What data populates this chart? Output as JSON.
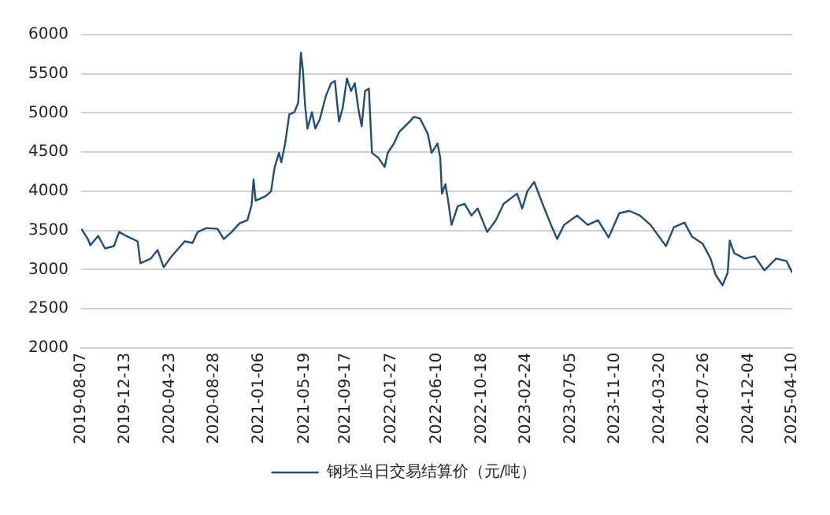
{
  "chart_data": {
    "type": "line",
    "x": [
      "2019-08-08",
      "2019-08-27",
      "2019-09-03",
      "2019-09-26",
      "2019-10-16",
      "2019-11-11",
      "2019-11-26",
      "2019-12-12",
      "2020-01-19",
      "2020-01-27",
      "2020-02-26",
      "2020-03-17",
      "2020-04-04",
      "2020-04-27",
      "2020-06-04",
      "2020-06-27",
      "2020-07-12",
      "2020-08-07",
      "2020-09-08",
      "2020-09-26",
      "2020-10-19",
      "2020-11-11",
      "2020-12-04",
      "2020-12-16",
      "2020-12-22",
      "2020-12-28",
      "2021-01-27",
      "2021-02-11",
      "2021-02-21",
      "2021-03-06",
      "2021-03-13",
      "2021-03-24",
      "2021-04-05",
      "2021-04-20",
      "2021-05-01",
      "2021-05-09",
      "2021-05-15",
      "2021-05-21",
      "2021-05-28",
      "2021-06-10",
      "2021-06-20",
      "2021-07-03",
      "2021-07-21",
      "2021-08-05",
      "2021-08-16",
      "2021-08-28",
      "2021-09-08",
      "2021-09-20",
      "2021-10-02",
      "2021-10-13",
      "2021-10-24",
      "2021-11-02",
      "2021-11-12",
      "2021-11-23",
      "2021-12-02",
      "2021-12-20",
      "2022-01-08",
      "2022-01-17",
      "2022-02-04",
      "2022-02-20",
      "2022-03-22",
      "2022-04-03",
      "2022-04-21",
      "2022-05-14",
      "2022-05-25",
      "2022-06-11",
      "2022-06-19",
      "2022-06-24",
      "2022-07-04",
      "2022-07-11",
      "2022-07-22",
      "2022-08-09",
      "2022-08-29",
      "2022-09-18",
      "2022-10-06",
      "2022-11-03",
      "2022-11-28",
      "2022-12-21",
      "2023-01-29",
      "2023-02-13",
      "2023-02-28",
      "2023-03-20",
      "2023-04-15",
      "2023-05-08",
      "2023-05-26",
      "2023-06-15",
      "2023-07-23",
      "2023-08-23",
      "2023-09-22",
      "2023-10-23",
      "2023-11-23",
      "2023-12-22",
      "2024-01-22",
      "2024-02-22",
      "2024-04-07",
      "2024-04-30",
      "2024-05-31",
      "2024-06-22",
      "2024-07-23",
      "2024-08-15",
      "2024-08-30",
      "2024-09-19",
      "2024-10-04",
      "2024-10-10",
      "2024-10-23",
      "2024-11-22",
      "2024-12-22",
      "2025-01-19",
      "2025-02-22",
      "2025-03-24",
      "2025-04-10"
    ],
    "series": [
      {
        "name": "钢坯当日交易结算价（元/吨）",
        "color": "#1f4e79",
        "values": [
          3520,
          3390,
          3310,
          3430,
          3270,
          3300,
          3480,
          3440,
          3360,
          3080,
          3140,
          3250,
          3030,
          3170,
          3360,
          3340,
          3480,
          3530,
          3520,
          3390,
          3480,
          3590,
          3630,
          3820,
          4150,
          3880,
          3940,
          4000,
          4300,
          4490,
          4370,
          4610,
          4980,
          5010,
          5130,
          5770,
          5530,
          5100,
          4800,
          5010,
          4800,
          4920,
          5220,
          5380,
          5410,
          4890,
          5070,
          5440,
          5280,
          5380,
          5040,
          4830,
          5280,
          5310,
          4490,
          4430,
          4310,
          4490,
          4610,
          4760,
          4890,
          4950,
          4930,
          4730,
          4490,
          4610,
          4430,
          3970,
          4090,
          3910,
          3570,
          3810,
          3840,
          3690,
          3780,
          3480,
          3630,
          3840,
          3970,
          3780,
          4000,
          4120,
          3820,
          3570,
          3390,
          3570,
          3690,
          3570,
          3630,
          3410,
          3720,
          3750,
          3690,
          3570,
          3300,
          3540,
          3600,
          3420,
          3330,
          3140,
          2930,
          2800,
          2960,
          3370,
          3210,
          3140,
          3170,
          2990,
          3140,
          3110,
          2960
        ]
      }
    ],
    "xlim": [
      "2019-08-07",
      "2025-04-10"
    ],
    "xticks": [
      "2019-08-07",
      "2019-12-13",
      "2020-04-23",
      "2020-08-28",
      "2021-01-06",
      "2021-05-19",
      "2021-09-17",
      "2022-01-27",
      "2022-06-10",
      "2022-10-18",
      "2023-02-24",
      "2023-07-05",
      "2023-11-10",
      "2024-03-20",
      "2024-07-26",
      "2024-12-04",
      "2025-04-10"
    ],
    "ylim": [
      2000,
      6000
    ],
    "yticks": [
      2000,
      2500,
      3000,
      3500,
      4000,
      4500,
      5000,
      5500,
      6000
    ],
    "grid": "y",
    "legend": "bottom",
    "marker": "none",
    "line_style": "solid"
  }
}
